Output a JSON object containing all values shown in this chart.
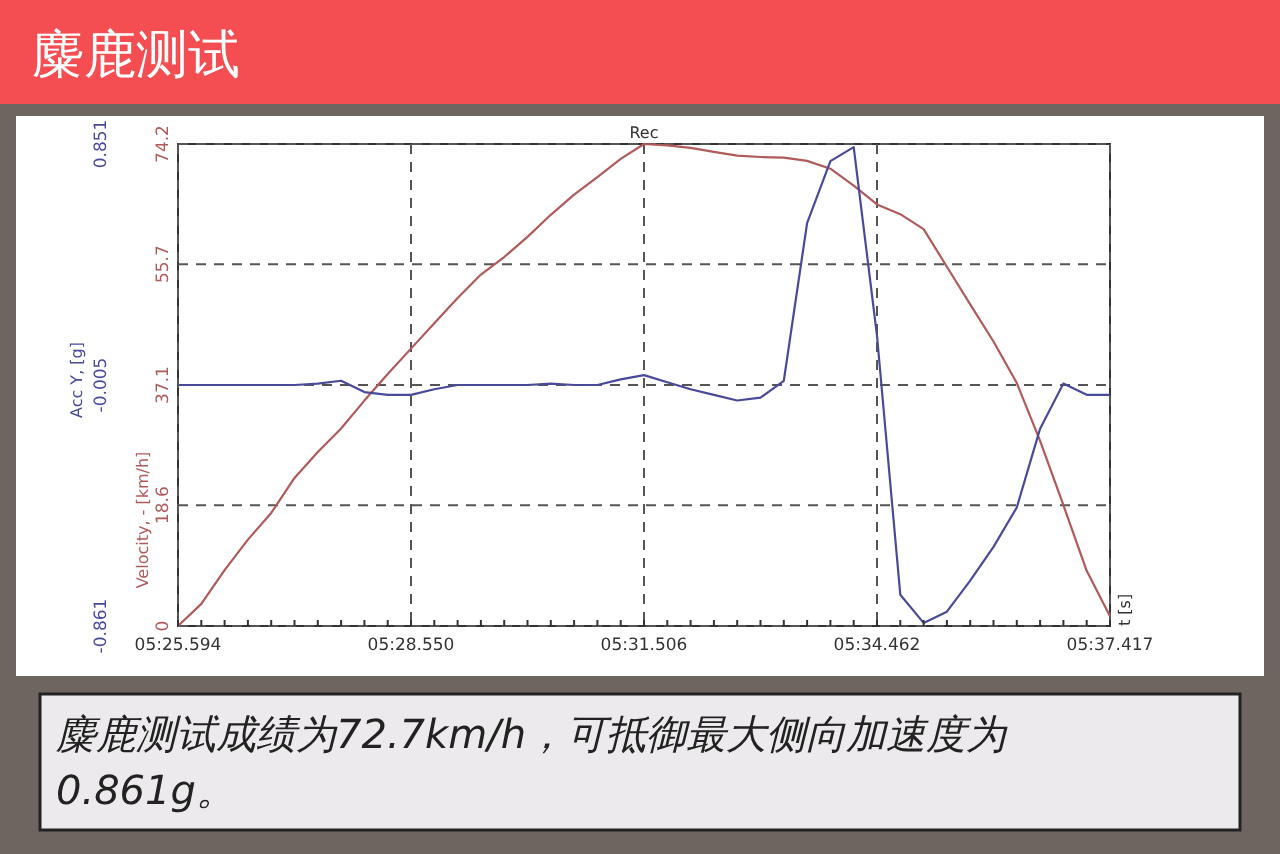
{
  "chart_data": {
    "type": "line",
    "title": "麋鹿测试",
    "ylabel": "Velocity, - [km/h]",
    "y2label": "Acc Y, [g]",
    "annotations": [
      "Rec",
      "t [s]",
      "麋鹿测试成绩为72.7km/h，可抵御最大侧向加速度为0.861g。"
    ],
    "categories": [
      "05:25.594",
      null,
      null,
      null,
      null,
      null,
      null,
      null,
      null,
      null,
      "05:28.550",
      null,
      null,
      null,
      null,
      null,
      null,
      null,
      null,
      null,
      "05:31.506",
      null,
      null,
      null,
      null,
      null,
      null,
      null,
      null,
      null,
      "05:34.462",
      null,
      null,
      null,
      null,
      null,
      null,
      null,
      null,
      null,
      "05:37.417"
    ],
    "ylim": [
      0,
      74.2
    ],
    "yticks": [
      0,
      18.6,
      37.1,
      55.7,
      74.2
    ],
    "y2lim": [
      -0.861,
      0.851
    ],
    "y2ticks": [
      -0.861,
      -0.005,
      0.851
    ],
    "grid": true,
    "line_style": "solid",
    "marker": "none",
    "series": [
      {
        "color": "#b05a5a",
        "values": [
          0,
          3.4,
          8.6,
          13.3,
          17.4,
          22.8,
          26.8,
          30.4,
          34.7,
          38.8,
          42.7,
          46.6,
          50.5,
          54.1,
          56.8,
          59.9,
          63.3,
          66.4,
          69.1,
          71.9,
          74.2,
          74.0,
          73.6,
          73.0,
          72.4,
          72.2,
          72.1,
          71.6,
          70.4,
          67.8,
          64.9,
          63.4,
          61.1,
          55.3,
          49.5,
          43.8,
          37.4,
          28.5,
          18.6,
          8.5,
          1.5
        ]
      },
      {
        "color": "#4a4a9a",
        "axis": "y2",
        "values": [
          -0.005,
          -0.005,
          -0.005,
          -0.005,
          -0.005,
          -0.005,
          0.0,
          0.01,
          -0.03,
          -0.04,
          -0.04,
          -0.02,
          -0.005,
          -0.005,
          -0.005,
          -0.005,
          0.0,
          -0.005,
          -0.005,
          0.015,
          0.03,
          0.005,
          -0.02,
          -0.04,
          -0.06,
          -0.05,
          0.01,
          0.57,
          0.79,
          0.84,
          0.17,
          -0.75,
          -0.85,
          -0.81,
          -0.7,
          -0.58,
          -0.44,
          -0.16,
          0.0,
          -0.04,
          -0.04
        ]
      }
    ]
  }
}
